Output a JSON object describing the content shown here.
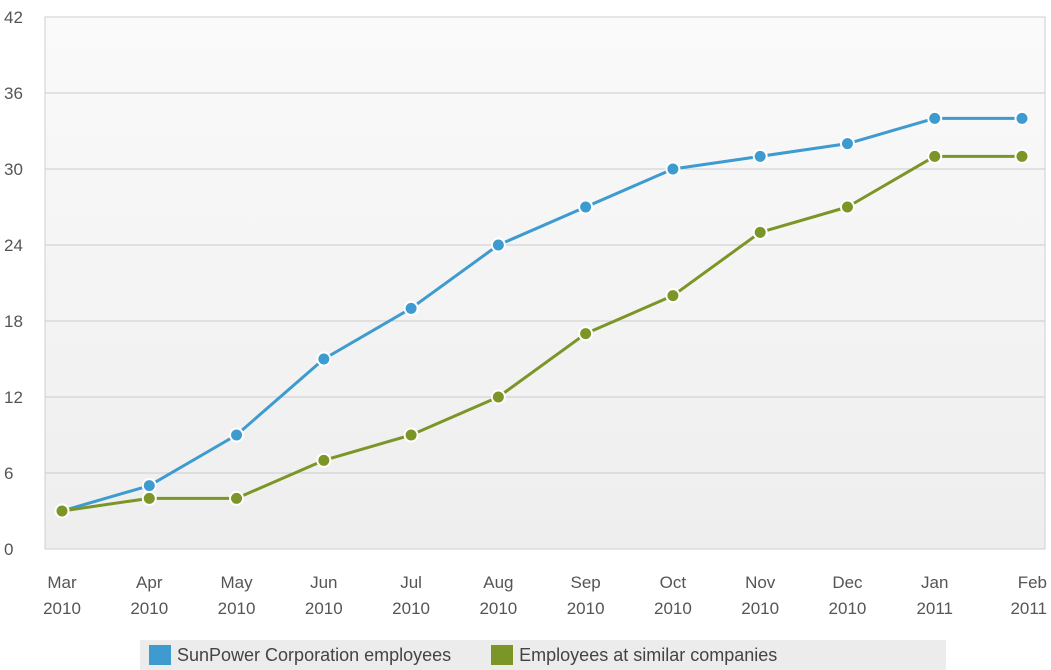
{
  "chart_data": {
    "type": "line",
    "categories": [
      [
        "Mar",
        "2010"
      ],
      [
        "Apr",
        "2010"
      ],
      [
        "May",
        "2010"
      ],
      [
        "Jun",
        "2010"
      ],
      [
        "Jul",
        "2010"
      ],
      [
        "Aug",
        "2010"
      ],
      [
        "Sep",
        "2010"
      ],
      [
        "Oct",
        "2010"
      ],
      [
        "Nov",
        "2010"
      ],
      [
        "Dec",
        "2010"
      ],
      [
        "Jan",
        "2011"
      ],
      [
        "Feb",
        "2011"
      ]
    ],
    "series": [
      {
        "name": "SunPower Corporation employees",
        "color": "#3d9bd0",
        "values": [
          3,
          5,
          9,
          15,
          19,
          24,
          27,
          30,
          31,
          32,
          34,
          34
        ]
      },
      {
        "name": "Employees at similar companies",
        "color": "#7b9526",
        "values": [
          3,
          4,
          4,
          7,
          9,
          12,
          17,
          20,
          25,
          27,
          31,
          31
        ]
      }
    ],
    "ylim": [
      0,
      42
    ],
    "yticks": [
      0,
      6,
      12,
      18,
      24,
      30,
      36,
      42
    ],
    "grid": true,
    "legend_position": "bottom",
    "title": "",
    "xlabel": "",
    "ylabel": ""
  }
}
